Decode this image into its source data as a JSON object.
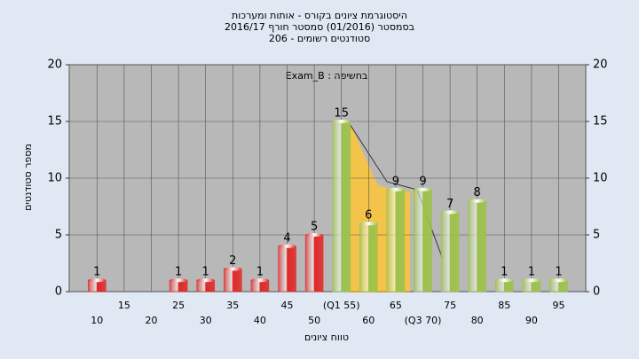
{
  "chart_data": {
    "type": "bar",
    "title": [
      "היסטוגרמת ציונים בקורס - אותות ומערכות",
      "בסמסטר  (01/2016)  סמסטר חורף 2016/17",
      "סטודנטים רשומים - 206"
    ],
    "annotation": "Exam_B : בחשיפה",
    "y_label": "מספר סטודנטים",
    "x_label": "טווח ציונים",
    "categories": [
      "10",
      "15",
      "20",
      "25",
      "30",
      "35",
      "40",
      "45",
      "50",
      "(Q1 55)",
      "60",
      "65",
      "(Q3 70)",
      "75",
      "80",
      "85",
      "90",
      "95"
    ],
    "values": [
      1,
      0,
      0,
      1,
      1,
      2,
      1,
      4,
      5,
      15,
      6,
      9,
      9,
      7,
      8,
      1,
      1,
      1
    ],
    "colors": [
      "#e02828",
      "#e02828",
      "#e02828",
      "#e02828",
      "#e02828",
      "#e02828",
      "#e02828",
      "#e02828",
      "#e02828",
      "#9cc24a",
      "#9cc24a",
      "#9cc24a",
      "#9cc24a",
      "#9cc24a",
      "#9cc24a",
      "#9cc24a",
      "#9cc24a",
      "#9cc24a"
    ],
    "ylim": [
      0,
      20
    ],
    "yticks": [
      0,
      5,
      10,
      15,
      20
    ],
    "y2lim": [
      0,
      20
    ],
    "y2ticks": [
      0,
      5,
      10,
      15,
      20
    ],
    "grid": true
  }
}
